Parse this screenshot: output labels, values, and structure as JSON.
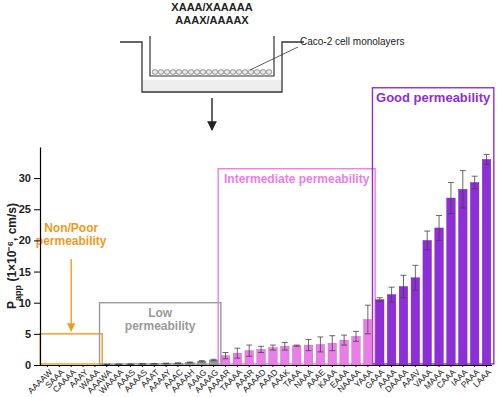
{
  "diagram": {
    "compounds": [
      "XAAA/XAAAAA",
      "AAAX/AAAAX"
    ],
    "label": "Caco-2 cell monolayers"
  },
  "chart_data": {
    "type": "bar",
    "y_label": [
      "P",
      "app",
      " (1×10⁻⁶, cm/s)"
    ],
    "categories": [
      "AAAAW",
      "SAAA",
      "CAAAA",
      "AAAY",
      "WAAA",
      "AAAWA",
      "WAAAA",
      "AAAS",
      "AAAAS",
      "AAAT",
      "AAAAY",
      "AAAC",
      "AAAAH",
      "AAAG",
      "AAAAG",
      "AAAAR",
      "TAAAA",
      "AAAR",
      "AAAAD",
      "AAAD",
      "AAAK",
      "TAAA",
      "NAAA",
      "AAAE",
      "KAAA",
      "EAAA",
      "NAAAA",
      "YAAA",
      "GAAA",
      "AAAA",
      "DAAAA",
      "AAAV",
      "VAAA",
      "MAAA",
      "CAAA",
      "IAAA",
      "PAAA",
      "LAAA"
    ],
    "values": [
      0,
      0,
      0,
      0,
      0,
      0.1,
      0.12,
      0.15,
      0.18,
      0.2,
      0.25,
      0.3,
      0.4,
      0.6,
      0.8,
      1.5,
      1.9,
      2.3,
      2.5,
      2.8,
      3.0,
      3.1,
      3.2,
      3.3,
      3.5,
      4.0,
      4.6,
      7.3,
      10.5,
      11.3,
      12.6,
      14.0,
      20.0,
      22.0,
      26.8,
      28.2,
      29.3,
      33.0
    ],
    "errors": [
      0,
      0,
      0,
      0,
      0,
      0.02,
      0.02,
      0.03,
      0.03,
      0.04,
      0.05,
      0.05,
      0.08,
      0.1,
      0.12,
      0.5,
      0.8,
      0.9,
      0.5,
      0.4,
      0.6,
      0.1,
      0.9,
      1.2,
      1.2,
      0.8,
      0.8,
      2.3,
      0.3,
      1.2,
      1.8,
      2.0,
      1.5,
      2.0,
      2.5,
      3.0,
      1.0,
      0.8
    ],
    "ylim": [
      0,
      35
    ],
    "yticks": [
      0,
      5,
      10,
      15,
      20,
      25,
      30
    ],
    "grid": false,
    "groups": [
      {
        "label": [
          "Non/Poor",
          "permeability"
        ],
        "color": "#f39a1e",
        "from": "AAAAW",
        "to": "WAAA",
        "ymax": 5
      },
      {
        "label": [
          "Low",
          "permeability"
        ],
        "color": "#9a9a9a",
        "from": "AAAWA",
        "to": "AAAAG",
        "ymax": 10
      },
      {
        "label": [
          "Intermediate permeability"
        ],
        "color": "#ea7ee8",
        "from": "AAAAR",
        "to": "YAAA",
        "ymax": 31.5
      },
      {
        "label": [
          "Good permeability"
        ],
        "color": "#8e2ed9",
        "from": "GAAA",
        "to": "LAAA",
        "ymax": 44.5
      }
    ]
  }
}
